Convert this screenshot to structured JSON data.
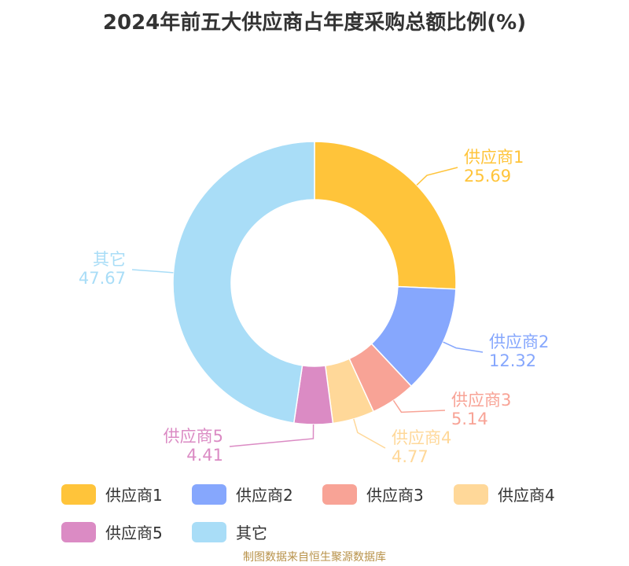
{
  "chart_data": {
    "type": "pie",
    "title": "2024年前五大供应商占年度采购总额比例(%)",
    "categories": [
      "供应商1",
      "供应商2",
      "供应商3",
      "供应商4",
      "供应商5",
      "其它"
    ],
    "values": [
      25.69,
      12.32,
      5.14,
      4.77,
      4.41,
      47.67
    ],
    "value_labels": [
      "25.69",
      "12.32",
      "5.14",
      "4.77",
      "4.41",
      "47.67"
    ],
    "colors": [
      "#FFC43A",
      "#86A7FD",
      "#F8A396",
      "#FFD899",
      "#DB8BC4",
      "#A9DDF7"
    ],
    "donut": true,
    "legend_position": "bottom"
  },
  "footer": {
    "source": "制图数据来自恒生聚源数据库"
  }
}
